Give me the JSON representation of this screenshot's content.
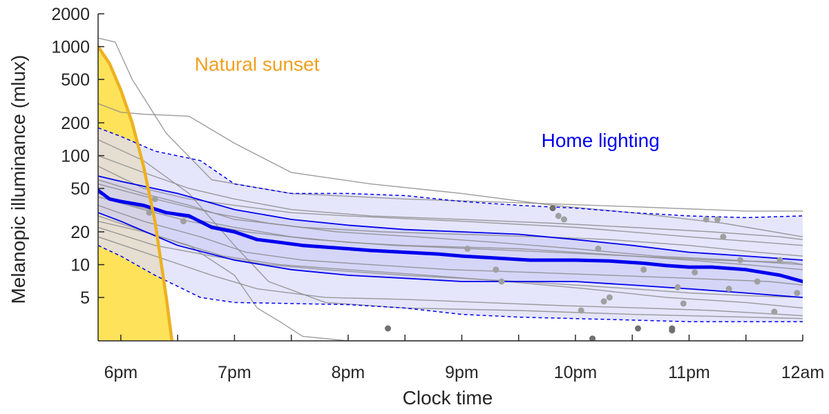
{
  "chart_data": {
    "type": "line",
    "title": "",
    "xlabel": "Clock time",
    "ylabel": "Melanopic illuminance (mlux)",
    "y_scale": "log",
    "xlim": [
      17.8,
      24.0
    ],
    "ylim": [
      2.0,
      2000
    ],
    "x_ticks": [
      {
        "value": 18,
        "label": "6pm"
      },
      {
        "value": 19,
        "label": "7pm"
      },
      {
        "value": 20,
        "label": "8pm"
      },
      {
        "value": 21,
        "label": "9pm"
      },
      {
        "value": 22,
        "label": "10pm"
      },
      {
        "value": 23,
        "label": "11pm"
      },
      {
        "value": 24,
        "label": "12am"
      }
    ],
    "x_minor_ticks": [
      18.5,
      19.5,
      20.5,
      21.5,
      22.5,
      23.5
    ],
    "y_ticks": [
      {
        "value": 5,
        "label": "5"
      },
      {
        "value": 10,
        "label": "10"
      },
      {
        "value": 20,
        "label": "20"
      },
      {
        "value": 50,
        "label": "50"
      },
      {
        "value": 100,
        "label": "100"
      },
      {
        "value": 200,
        "label": "200"
      },
      {
        "value": 500,
        "label": "500"
      },
      {
        "value": 1000,
        "label": "1000"
      },
      {
        "value": 2000,
        "label": "2000"
      }
    ],
    "grid": false,
    "legend": "none",
    "colors": {
      "sunset_fill": "#fde25a",
      "sunset_line": "#edb120",
      "sunset_text": "#f0a020",
      "home": "#0000ee",
      "home_band": "#dcdcfa",
      "individual": "#8c8c8c",
      "individual_dot": "#a0a0a0",
      "individual_dot_dark": "#707070"
    },
    "annotations": [
      {
        "text": "Natural sunset",
        "x": 18.65,
        "y": 600,
        "color": "#f0a020"
      },
      {
        "text": "Home lighting",
        "x": 21.7,
        "y": 120,
        "color": "#0000ee"
      }
    ],
    "sunset_curve": {
      "x": [
        17.8,
        17.9,
        18.0,
        18.1,
        18.2,
        18.3,
        18.4,
        18.45
      ],
      "y": [
        1000,
        700,
        400,
        200,
        80,
        25,
        5,
        2
      ]
    },
    "home_band_outer": {
      "x": [
        17.8,
        18.0,
        18.3,
        18.7,
        19.0,
        19.5,
        20.0,
        20.5,
        21.0,
        21.5,
        22.0,
        22.5,
        23.0,
        23.5,
        24.0
      ],
      "upper": [
        180,
        150,
        110,
        90,
        55,
        45,
        45,
        43,
        38,
        35,
        33,
        30,
        28,
        27,
        28
      ],
      "lower": [
        15,
        12,
        8,
        5.0,
        4.5,
        4.4,
        4.3,
        4.0,
        3.5,
        3.3,
        3.2,
        3.1,
        3.0,
        3.0,
        3.0
      ]
    },
    "series": [
      {
        "name": "",
        "style": "median",
        "x": [
          17.8,
          17.9,
          18.0,
          18.2,
          18.4,
          18.6,
          18.8,
          19.0,
          19.2,
          19.4,
          19.6,
          19.8,
          20.0,
          20.2,
          20.5,
          20.8,
          21.0,
          21.3,
          21.6,
          22.0,
          22.3,
          22.6,
          22.8,
          23.0,
          23.2,
          23.5,
          23.8,
          24.0
        ],
        "y": [
          48,
          40,
          38,
          35,
          30,
          28,
          22,
          20,
          17,
          16,
          15,
          14.5,
          14,
          13.5,
          13,
          12.5,
          12,
          11.5,
          11,
          11,
          10.8,
          10.3,
          9.8,
          9.5,
          9.5,
          9,
          8,
          7
        ]
      },
      {
        "name": "",
        "style": "quartile",
        "x": [
          17.8,
          18.0,
          18.5,
          19.0,
          19.5,
          20.0,
          20.5,
          21.0,
          21.5,
          22.0,
          22.5,
          23.0,
          23.5,
          24.0
        ],
        "y": [
          65,
          58,
          45,
          32,
          26,
          23,
          21,
          20,
          19,
          17,
          15,
          13,
          12,
          11
        ]
      },
      {
        "name": "",
        "style": "quartile",
        "x": [
          17.8,
          18.0,
          18.5,
          19.0,
          19.5,
          20.0,
          20.5,
          21.0,
          21.5,
          22.0,
          22.5,
          23.0,
          23.5,
          24.0
        ],
        "y": [
          30,
          25,
          15,
          11,
          9,
          8,
          7.5,
          7,
          7,
          7,
          6.5,
          6,
          5.5,
          5
        ]
      },
      {
        "name": "",
        "style": "individual",
        "x": [
          17.8,
          17.95,
          18.1,
          18.4,
          18.8,
          19.5,
          20.5,
          21.5,
          22.5,
          23.5,
          24.0
        ],
        "y": [
          1200,
          1100,
          500,
          160,
          60,
          45,
          40,
          37,
          34,
          31,
          31
        ]
      },
      {
        "name": "",
        "style": "individual",
        "x": [
          17.8,
          18.0,
          18.2,
          18.6,
          19.0,
          19.5,
          20.2,
          21.0,
          21.8,
          22.5,
          23.3,
          24.0
        ],
        "y": [
          300,
          250,
          240,
          230,
          130,
          70,
          55,
          45,
          35,
          30,
          24,
          18
        ]
      },
      {
        "name": "",
        "style": "individual",
        "x": [
          17.8,
          18.2,
          18.6,
          19.0,
          19.5,
          20.0,
          21.0,
          22.0,
          23.0,
          24.0
        ],
        "y": [
          80,
          50,
          40,
          35,
          30,
          28,
          25,
          22,
          18,
          15
        ]
      },
      {
        "name": "",
        "style": "individual",
        "x": [
          17.8,
          18.2,
          18.6,
          19.0,
          19.3,
          19.8,
          20.5,
          21.5,
          22.5,
          23.5,
          24.0
        ],
        "y": [
          140,
          90,
          45,
          15,
          7,
          4.5,
          4,
          3.8,
          3.5,
          3.3,
          3.2
        ]
      },
      {
        "name": "",
        "style": "individual",
        "x": [
          17.8,
          18.2,
          18.6,
          19.0,
          19.2,
          19.4,
          19.6,
          20.0,
          21.0,
          22.0,
          23.0,
          23.4
        ],
        "y": [
          25,
          20,
          15,
          8,
          4,
          3,
          2.2,
          2.0,
          2.0,
          2.0,
          2.0,
          2.0
        ]
      },
      {
        "name": "",
        "style": "individual",
        "x": [
          17.8,
          18.1,
          18.5,
          19.0,
          19.5,
          20.0,
          20.5,
          21.0,
          21.5,
          22.0,
          22.5,
          23.0,
          23.5,
          24.0
        ],
        "y": [
          45,
          35,
          28,
          22,
          18,
          16,
          15,
          14.5,
          14,
          13,
          12,
          11,
          10,
          9
        ]
      },
      {
        "name": "",
        "style": "individual",
        "x": [
          17.8,
          18.3,
          18.8,
          19.3,
          19.8,
          20.5,
          21.0,
          21.5,
          22.0,
          22.5,
          23.0,
          23.5,
          24.0
        ],
        "y": [
          22,
          15,
          12,
          10,
          9,
          8,
          7.5,
          7,
          6.5,
          6,
          5.5,
          5.2,
          5
        ]
      },
      {
        "name": "",
        "style": "individual",
        "x": [
          17.8,
          18.2,
          18.6,
          19.0,
          19.6,
          20.3,
          21.0,
          21.7,
          22.3,
          23.0,
          23.6,
          24.0
        ],
        "y": [
          60,
          45,
          35,
          26,
          22,
          20,
          19,
          18,
          17,
          15,
          13,
          12
        ]
      },
      {
        "name": "",
        "style": "individual",
        "x": [
          17.8,
          18.2,
          18.7,
          19.1,
          19.6,
          20.2,
          20.9,
          21.6,
          22.3,
          23.0,
          23.7,
          24.0
        ],
        "y": [
          35,
          25,
          18,
          13,
          11,
          10,
          9,
          8.5,
          8,
          7.5,
          7,
          6.5
        ]
      },
      {
        "name": "",
        "style": "individual",
        "x": [
          17.8,
          18.3,
          18.8,
          19.2,
          19.8,
          20.5,
          21.2,
          21.9,
          22.6,
          23.2,
          23.8,
          24.0
        ],
        "y": [
          18,
          12,
          8,
          6,
          5,
          4.8,
          4.5,
          4.2,
          4,
          3.8,
          3.5,
          3.4
        ]
      },
      {
        "name": "",
        "style": "individual",
        "x": [
          17.8,
          18.2,
          18.6,
          19.0,
          19.5,
          20.2,
          21.0,
          21.8,
          22.5,
          23.2,
          23.8,
          24.0
        ],
        "y": [
          100,
          70,
          50,
          40,
          32,
          28,
          26,
          24,
          22,
          20,
          18,
          17
        ]
      },
      {
        "name": "",
        "style": "individual",
        "x": [
          17.8,
          18.1,
          18.5,
          18.9,
          19.4,
          20.0,
          20.7,
          21.4,
          22.1,
          22.8,
          23.5,
          24.0
        ],
        "y": [
          28,
          22,
          16,
          12,
          10,
          9,
          8,
          7,
          6,
          5,
          4.5,
          4
        ]
      },
      {
        "name": "",
        "style": "individual",
        "x": [
          17.8,
          18.2,
          18.6,
          19.1,
          19.7,
          20.4,
          21.1,
          21.8,
          22.5,
          23.2,
          23.9,
          24.0
        ],
        "y": [
          42,
          32,
          25,
          20,
          17,
          15,
          14,
          13,
          12,
          11,
          10.5,
          10
        ]
      },
      {
        "name": "",
        "style": "individual",
        "x": [
          17.8,
          18.3,
          18.8,
          19.3,
          19.9,
          20.6,
          21.3,
          22.0,
          22.7,
          23.4,
          24.0
        ],
        "y": [
          55,
          40,
          30,
          24,
          20,
          18,
          16,
          14,
          12,
          11,
          10
        ]
      }
    ],
    "individual_points": [
      {
        "x": 18.25,
        "y": 30
      },
      {
        "x": 18.3,
        "y": 40
      },
      {
        "x": 18.55,
        "y": 25
      },
      {
        "x": 21.05,
        "y": 14
      },
      {
        "x": 21.3,
        "y": 9
      },
      {
        "x": 21.35,
        "y": 7
      },
      {
        "x": 21.85,
        "y": 28
      },
      {
        "x": 21.9,
        "y": 26
      },
      {
        "x": 22.05,
        "y": 3.8
      },
      {
        "x": 22.2,
        "y": 14
      },
      {
        "x": 22.25,
        "y": 4.6
      },
      {
        "x": 22.3,
        "y": 5.0
      },
      {
        "x": 22.6,
        "y": 9.0
      },
      {
        "x": 22.9,
        "y": 6.2
      },
      {
        "x": 22.95,
        "y": 4.4
      },
      {
        "x": 23.05,
        "y": 8.5
      },
      {
        "x": 23.15,
        "y": 26
      },
      {
        "x": 23.25,
        "y": 26
      },
      {
        "x": 23.3,
        "y": 18
      },
      {
        "x": 23.35,
        "y": 6.0
      },
      {
        "x": 23.45,
        "y": 11
      },
      {
        "x": 23.6,
        "y": 7.0
      },
      {
        "x": 23.75,
        "y": 3.7
      },
      {
        "x": 23.8,
        "y": 11
      },
      {
        "x": 23.95,
        "y": 5.5
      }
    ],
    "individual_points_dark": [
      {
        "x": 21.8,
        "y": 33
      },
      {
        "x": 20.35,
        "y": 2.6
      },
      {
        "x": 22.15,
        "y": 2.1
      },
      {
        "x": 22.55,
        "y": 2.6
      },
      {
        "x": 22.85,
        "y": 2.6
      },
      {
        "x": 22.85,
        "y": 2.5
      }
    ]
  }
}
